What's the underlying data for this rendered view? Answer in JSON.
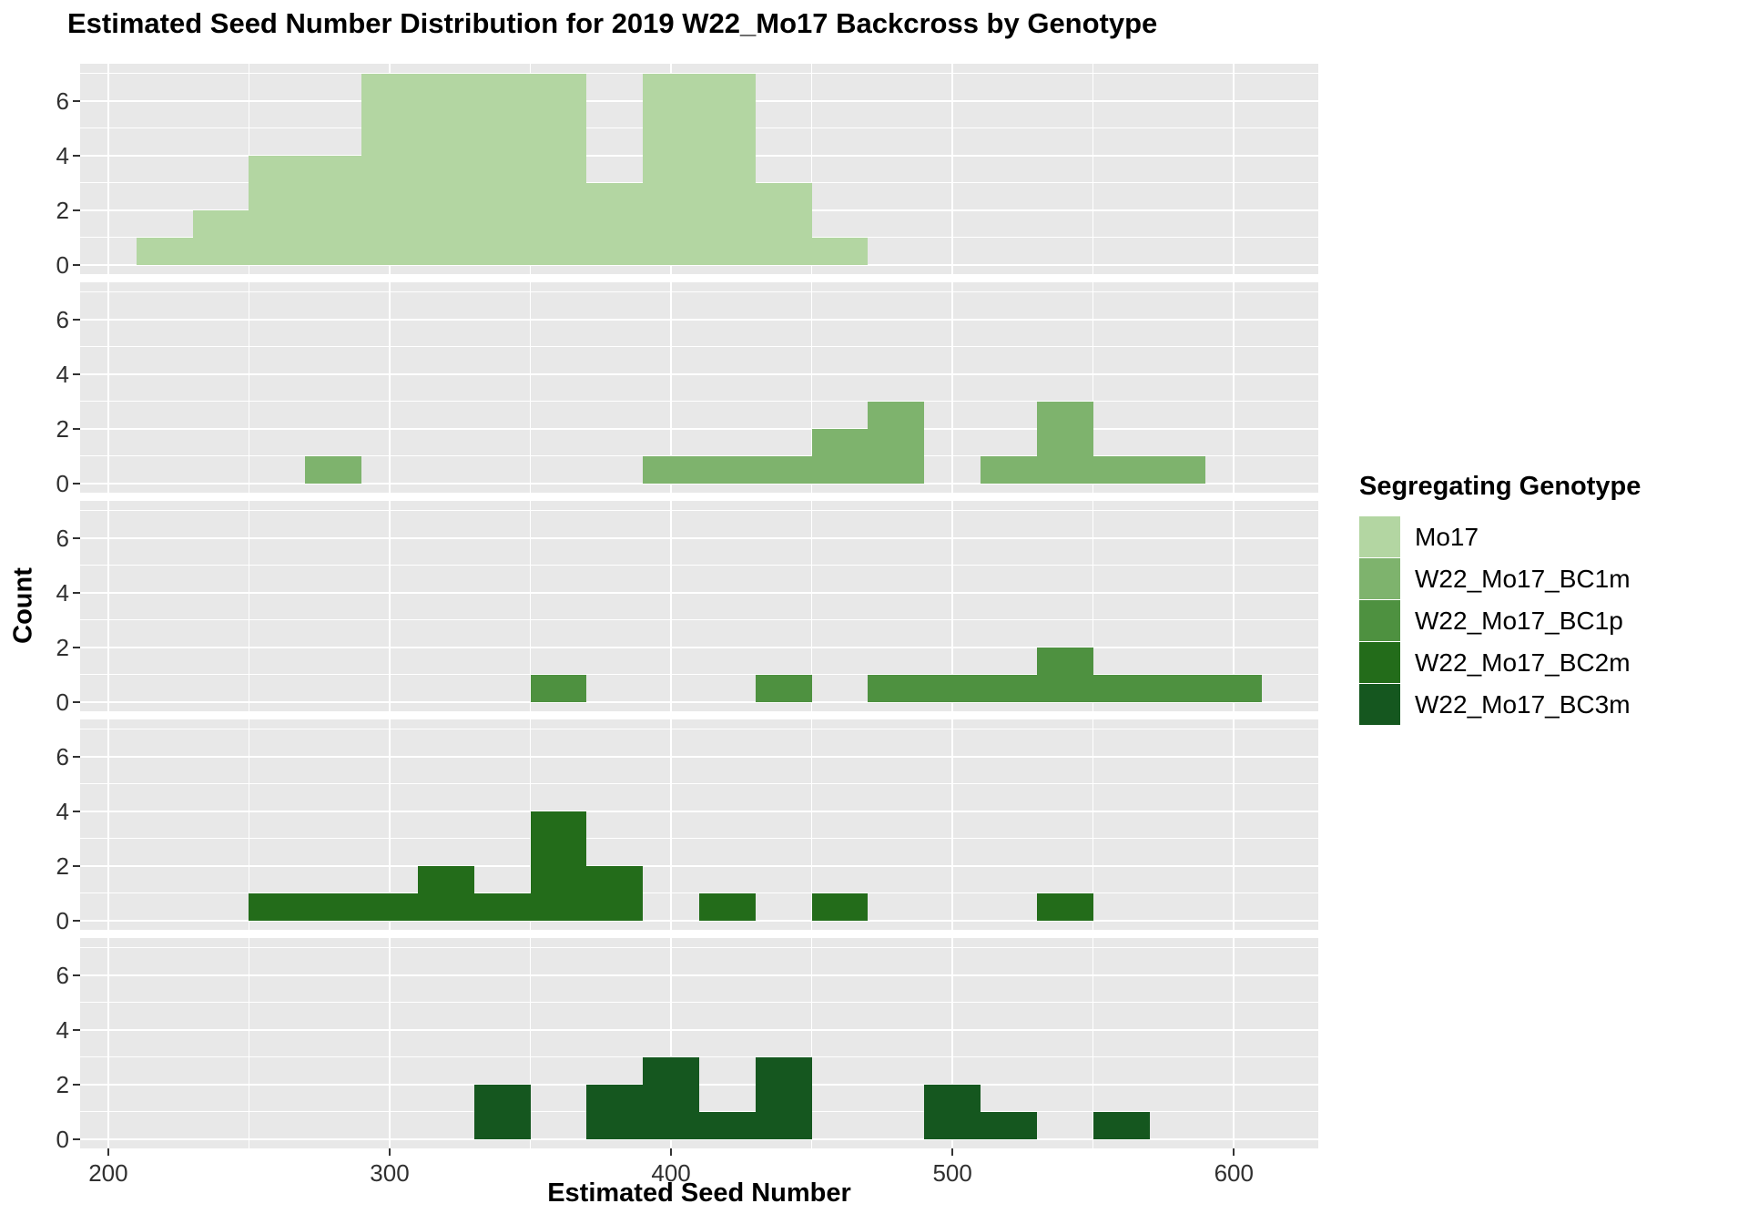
{
  "chart_data": {
    "type": "bar",
    "subtype": "faceted-histogram",
    "title": "Estimated Seed Number Distribution for 2019 W22_Mo17 Backcross by Genotype",
    "xlabel": "Estimated Seed Number",
    "ylabel": "Count",
    "legend_title": "Segregating Genotype",
    "binwidth": 20,
    "axes": {
      "x_ticks": [
        200,
        300,
        400,
        500,
        600
      ],
      "x_minor": [
        250,
        350,
        450,
        550
      ],
      "y_ticks": [
        6,
        4,
        2,
        0
      ],
      "y_minor": [
        1,
        3,
        5,
        7
      ],
      "xlim": [
        190,
        630
      ],
      "ylim": [
        0,
        7
      ],
      "grid": "on",
      "panel_bg": "#e8e8e8",
      "grid_color": "#ffffff",
      "tick_color": "#333333"
    },
    "facets": [
      {
        "genotype": "Mo17",
        "color": "#b3d6a2",
        "bins": [
          [
            210,
            1
          ],
          [
            230,
            2
          ],
          [
            250,
            4
          ],
          [
            270,
            4
          ],
          [
            290,
            7
          ],
          [
            310,
            7
          ],
          [
            330,
            7
          ],
          [
            350,
            7
          ],
          [
            370,
            3
          ],
          [
            390,
            7
          ],
          [
            410,
            7
          ],
          [
            430,
            3
          ],
          [
            450,
            1
          ]
        ]
      },
      {
        "genotype": "W22_Mo17_BC1m",
        "color": "#7eb36d",
        "bins": [
          [
            270,
            1
          ],
          [
            390,
            1
          ],
          [
            410,
            1
          ],
          [
            430,
            1
          ],
          [
            450,
            2
          ],
          [
            470,
            3
          ],
          [
            510,
            1
          ],
          [
            530,
            3
          ],
          [
            550,
            1
          ],
          [
            570,
            1
          ]
        ]
      },
      {
        "genotype": "W22_Mo17_BC1p",
        "color": "#4e9140",
        "bins": [
          [
            350,
            1
          ],
          [
            430,
            1
          ],
          [
            470,
            1
          ],
          [
            490,
            1
          ],
          [
            510,
            1
          ],
          [
            530,
            2
          ],
          [
            550,
            1
          ],
          [
            570,
            1
          ],
          [
            590,
            1
          ]
        ]
      },
      {
        "genotype": "W22_Mo17_BC2m",
        "color": "#236c1a",
        "bins": [
          [
            250,
            1
          ],
          [
            270,
            1
          ],
          [
            290,
            1
          ],
          [
            310,
            2
          ],
          [
            330,
            1
          ],
          [
            350,
            4
          ],
          [
            370,
            2
          ],
          [
            410,
            1
          ],
          [
            450,
            1
          ],
          [
            530,
            1
          ]
        ]
      },
      {
        "genotype": "W22_Mo17_BC3m",
        "color": "#15571f",
        "bins": [
          [
            330,
            2
          ],
          [
            370,
            2
          ],
          [
            390,
            3
          ],
          [
            410,
            1
          ],
          [
            430,
            3
          ],
          [
            490,
            2
          ],
          [
            510,
            1
          ],
          [
            550,
            1
          ]
        ]
      }
    ],
    "legend": {
      "position": "right",
      "entries": [
        {
          "label": "Mo17",
          "color": "#b3d6a2"
        },
        {
          "label": "W22_Mo17_BC1m",
          "color": "#7eb36d"
        },
        {
          "label": "W22_Mo17_BC1p",
          "color": "#4e9140"
        },
        {
          "label": "W22_Mo17_BC2m",
          "color": "#236c1a"
        },
        {
          "label": "W22_Mo17_BC3m",
          "color": "#15571f"
        }
      ]
    }
  }
}
